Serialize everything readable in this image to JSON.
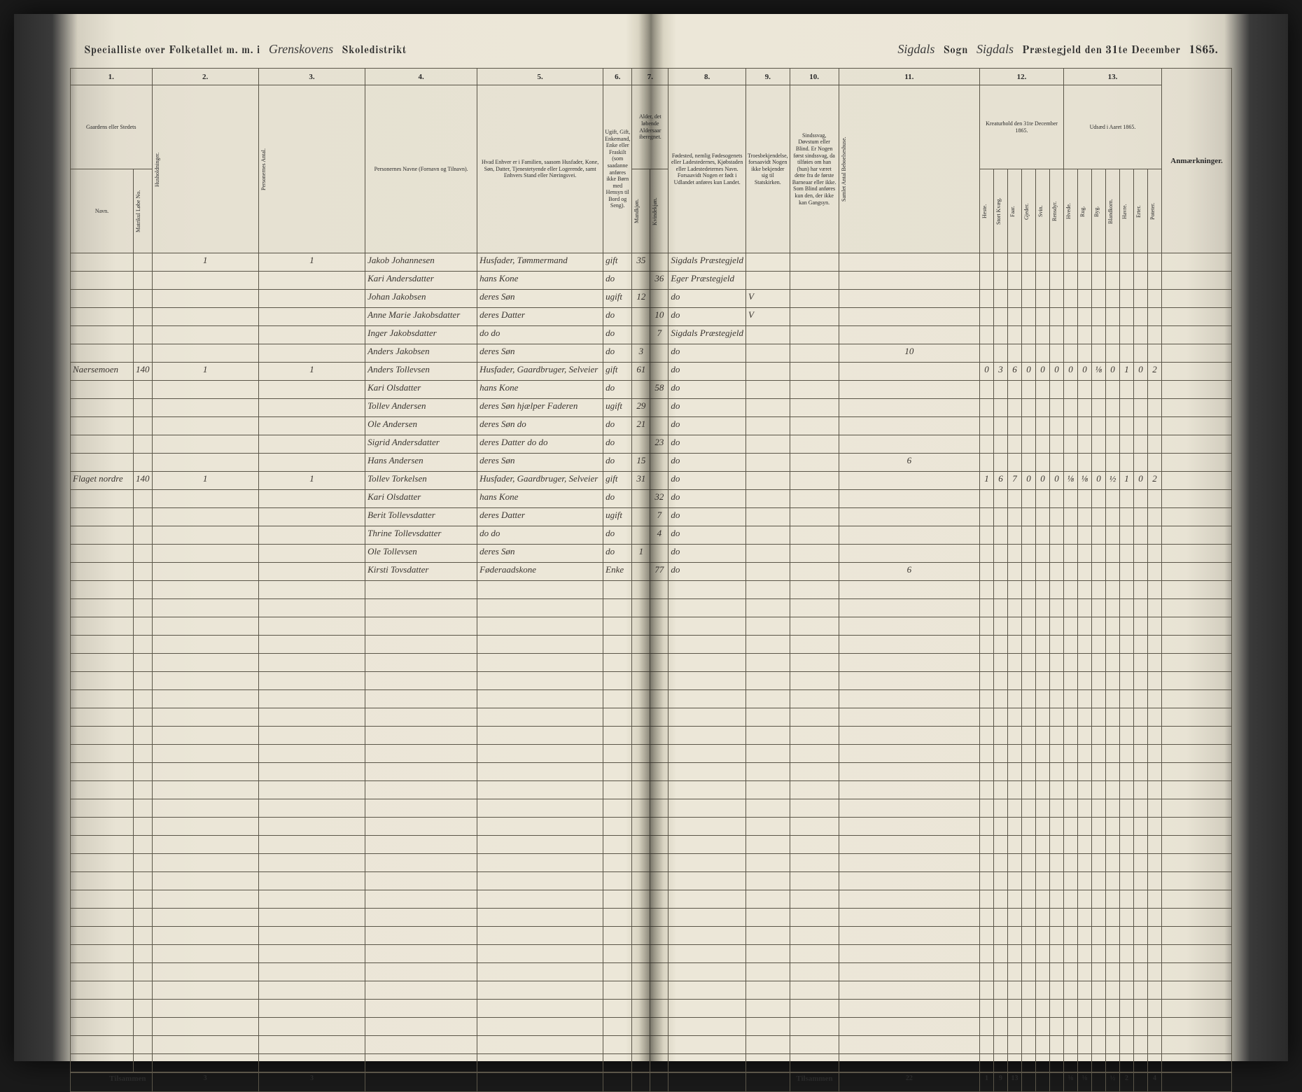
{
  "header": {
    "title_prefix": "Specialliste over Folketallet m. m. i",
    "district": "Grenskovens",
    "district_label": "Skoledistrikt",
    "parish": "Sigdals",
    "parish_label": "Sogn",
    "prestegjeld": "Sigdals",
    "prestegjeld_label": "Præstegjeld den 31te December",
    "year": "1865."
  },
  "columns": {
    "c1": "1.",
    "c2": "2.",
    "c3": "3.",
    "c4": "4.",
    "c5": "5.",
    "c6": "6.",
    "c7": "7.",
    "c8": "8.",
    "c9": "9.",
    "c10": "10.",
    "c11": "11.",
    "c12": "12.",
    "c13": "13.",
    "h1": "Gaardens eller Stedets",
    "h1a": "Navn.",
    "h1b": "Matrikul Løbe No.",
    "h2": "Husholdninger.",
    "h3": "Personernes Antal.",
    "h4": "Personernes Navne (Fornavn og Tilnavn).",
    "h5": "Hvad Enhver er i Familien, saasom Husfader, Kone, Søn, Datter, Tjenestetyende eller Logerende, samt Enhvers Stand eller Næringsvei.",
    "h6": "Ugift, Gift, Enkemand, Enke eller Fraskilt (som saadanne anføres ikke Børn med Hensyn til Bord og Seng).",
    "h7": "Alder, det løbende Aldersaar iberegnet.",
    "h7a": "Mandkjøn.",
    "h7b": "Kvindekjøn.",
    "h8": "Fødested, nemlig Fødesogenets eller Ladestedernes, Kjøbstaden eller Ladestedeternes Navn. Forsaavidt Nogen er født i Udlandet anføres kun Landet.",
    "h9": "Troesbekjendelse, forsaavidt Nogen ikke bekjender sig til Statskirken.",
    "h10": "Sindssvag, Døvstum eller Blind. Er Nogen først sindssvag, da tilføies om han (hun) har været dette fra de første Barneaar eller ikke. Som Blind anføres kun den, der ikke kan Gangsyn.",
    "h11": "Samlet Antal Beboelseshuse.",
    "h12": "Kreaturhold den 31te December 1865.",
    "h12a": "Heste.",
    "h12b": "Stort Kvæg.",
    "h12c": "Faar.",
    "h12d": "Gjeder.",
    "h12e": "Svin.",
    "h12f": "Rensdyr.",
    "h13": "Udsæd i Aaret 1865.",
    "h13a": "Hvede.",
    "h13b": "Rug.",
    "h13c": "Byg.",
    "h13d": "Blandkorn.",
    "h13e": "Havre.",
    "h13f": "Erter.",
    "h13g": "Poteter.",
    "h14": "Anmærkninger."
  },
  "rows": [
    {
      "farm": "",
      "matr": "",
      "h": "1",
      "p": "1",
      "name": "Jakob Johannesen",
      "pos": "Husfader, Tømmermand",
      "mar": "gift",
      "am": "35",
      "af": "",
      "birth": "Sigdals Præstegjeld",
      "rel": "",
      "dis": "",
      "house": "",
      "l1": "",
      "l2": "",
      "l3": "",
      "l4": "",
      "l5": "",
      "l6": "",
      "u1": "",
      "u2": "",
      "u3": "",
      "u4": "",
      "u5": "",
      "u6": "",
      "u7": "",
      "rem": ""
    },
    {
      "farm": "",
      "matr": "",
      "h": "",
      "p": "",
      "name": "Kari Andersdatter",
      "pos": "hans Kone",
      "mar": "do",
      "am": "",
      "af": "36",
      "birth": "Eger Præstegjeld",
      "rel": "",
      "dis": "",
      "house": "",
      "l1": "",
      "l2": "",
      "l3": "",
      "l4": "",
      "l5": "",
      "l6": "",
      "u1": "",
      "u2": "",
      "u3": "",
      "u4": "",
      "u5": "",
      "u6": "",
      "u7": "",
      "rem": ""
    },
    {
      "farm": "",
      "matr": "",
      "h": "",
      "p": "",
      "name": "Johan Jakobsen",
      "pos": "deres Søn",
      "mar": "ugift",
      "am": "12",
      "af": "",
      "birth": "do",
      "rel": "V",
      "dis": "",
      "house": "",
      "l1": "",
      "l2": "",
      "l3": "",
      "l4": "",
      "l5": "",
      "l6": "",
      "u1": "",
      "u2": "",
      "u3": "",
      "u4": "",
      "u5": "",
      "u6": "",
      "u7": "",
      "rem": ""
    },
    {
      "farm": "",
      "matr": "",
      "h": "",
      "p": "",
      "name": "Anne Marie Jakobsdatter",
      "pos": "deres Datter",
      "mar": "do",
      "am": "",
      "af": "10",
      "birth": "do",
      "rel": "V",
      "dis": "",
      "house": "",
      "l1": "",
      "l2": "",
      "l3": "",
      "l4": "",
      "l5": "",
      "l6": "",
      "u1": "",
      "u2": "",
      "u3": "",
      "u4": "",
      "u5": "",
      "u6": "",
      "u7": "",
      "rem": ""
    },
    {
      "farm": "",
      "matr": "",
      "h": "",
      "p": "",
      "name": "Inger Jakobsdatter",
      "pos": "do   do",
      "mar": "do",
      "am": "",
      "af": "7",
      "birth": "Sigdals Præstegjeld",
      "rel": "",
      "dis": "",
      "house": "",
      "l1": "",
      "l2": "",
      "l3": "",
      "l4": "",
      "l5": "",
      "l6": "",
      "u1": "",
      "u2": "",
      "u3": "",
      "u4": "",
      "u5": "",
      "u6": "",
      "u7": "",
      "rem": ""
    },
    {
      "farm": "",
      "matr": "",
      "h": "",
      "p": "",
      "name": "Anders Jakobsen",
      "pos": "deres Søn",
      "mar": "do",
      "am": "3",
      "af": "",
      "birth": "do",
      "rel": "",
      "dis": "",
      "house": "10",
      "l1": "",
      "l2": "",
      "l3": "",
      "l4": "",
      "l5": "",
      "l6": "",
      "u1": "",
      "u2": "",
      "u3": "",
      "u4": "",
      "u5": "",
      "u6": "",
      "u7": "",
      "rem": ""
    },
    {
      "farm": "Naersemoen",
      "matr": "140",
      "h": "1",
      "p": "1",
      "name": "Anders Tollevsen",
      "pos": "Husfader, Gaardbruger, Selveier",
      "mar": "gift",
      "am": "61",
      "af": "",
      "birth": "do",
      "rel": "",
      "dis": "",
      "house": "",
      "l1": "0",
      "l2": "3",
      "l3": "6",
      "l4": "0",
      "l5": "0",
      "l6": "0",
      "u1": "0",
      "u2": "0",
      "u3": "⅛",
      "u4": "0",
      "u5": "1",
      "u6": "0",
      "u7": "2",
      "rem": ""
    },
    {
      "farm": "",
      "matr": "",
      "h": "",
      "p": "",
      "name": "Kari Olsdatter",
      "pos": "hans Kone",
      "mar": "do",
      "am": "",
      "af": "58",
      "birth": "do",
      "rel": "",
      "dis": "",
      "house": "",
      "l1": "",
      "l2": "",
      "l3": "",
      "l4": "",
      "l5": "",
      "l6": "",
      "u1": "",
      "u2": "",
      "u3": "",
      "u4": "",
      "u5": "",
      "u6": "",
      "u7": "",
      "rem": ""
    },
    {
      "farm": "",
      "matr": "",
      "h": "",
      "p": "",
      "name": "Tollev Andersen",
      "pos": "deres Søn hjælper Faderen",
      "mar": "ugift",
      "am": "29",
      "af": "",
      "birth": "do",
      "rel": "",
      "dis": "",
      "house": "",
      "l1": "",
      "l2": "",
      "l3": "",
      "l4": "",
      "l5": "",
      "l6": "",
      "u1": "",
      "u2": "",
      "u3": "",
      "u4": "",
      "u5": "",
      "u6": "",
      "u7": "",
      "rem": ""
    },
    {
      "farm": "",
      "matr": "",
      "h": "",
      "p": "",
      "name": "Ole Andersen",
      "pos": "deres Søn  do",
      "mar": "do",
      "am": "21",
      "af": "",
      "birth": "do",
      "rel": "",
      "dis": "",
      "house": "",
      "l1": "",
      "l2": "",
      "l3": "",
      "l4": "",
      "l5": "",
      "l6": "",
      "u1": "",
      "u2": "",
      "u3": "",
      "u4": "",
      "u5": "",
      "u6": "",
      "u7": "",
      "rem": ""
    },
    {
      "farm": "",
      "matr": "",
      "h": "",
      "p": "",
      "name": "Sigrid Andersdatter",
      "pos": "deres Datter do   do",
      "mar": "do",
      "am": "",
      "af": "23",
      "birth": "do",
      "rel": "",
      "dis": "",
      "house": "",
      "l1": "",
      "l2": "",
      "l3": "",
      "l4": "",
      "l5": "",
      "l6": "",
      "u1": "",
      "u2": "",
      "u3": "",
      "u4": "",
      "u5": "",
      "u6": "",
      "u7": "",
      "rem": ""
    },
    {
      "farm": "",
      "matr": "",
      "h": "",
      "p": "",
      "name": "Hans Andersen",
      "pos": "deres Søn",
      "mar": "do",
      "am": "15",
      "af": "",
      "birth": "do",
      "rel": "",
      "dis": "",
      "house": "6",
      "l1": "",
      "l2": "",
      "l3": "",
      "l4": "",
      "l5": "",
      "l6": "",
      "u1": "",
      "u2": "",
      "u3": "",
      "u4": "",
      "u5": "",
      "u6": "",
      "u7": "",
      "rem": ""
    },
    {
      "farm": "Flaget nordre",
      "matr": "140",
      "h": "1",
      "p": "1",
      "name": "Tollev Torkelsen",
      "pos": "Husfader, Gaardbruger, Selveier",
      "mar": "gift",
      "am": "31",
      "af": "",
      "birth": "do",
      "rel": "",
      "dis": "",
      "house": "",
      "l1": "1",
      "l2": "6",
      "l3": "7",
      "l4": "0",
      "l5": "0",
      "l6": "0",
      "u1": "⅛",
      "u2": "⅛",
      "u3": "0",
      "u4": "½",
      "u5": "1",
      "u6": "0",
      "u7": "2",
      "rem": ""
    },
    {
      "farm": "",
      "matr": "",
      "h": "",
      "p": "",
      "name": "Kari Olsdatter",
      "pos": "hans Kone",
      "mar": "do",
      "am": "",
      "af": "32",
      "birth": "do",
      "rel": "",
      "dis": "",
      "house": "",
      "l1": "",
      "l2": "",
      "l3": "",
      "l4": "",
      "l5": "",
      "l6": "",
      "u1": "",
      "u2": "",
      "u3": "",
      "u4": "",
      "u5": "",
      "u6": "",
      "u7": "",
      "rem": ""
    },
    {
      "farm": "",
      "matr": "",
      "h": "",
      "p": "",
      "name": "Berit Tollevsdatter",
      "pos": "deres Datter",
      "mar": "ugift",
      "am": "",
      "af": "7",
      "birth": "do",
      "rel": "",
      "dis": "",
      "house": "",
      "l1": "",
      "l2": "",
      "l3": "",
      "l4": "",
      "l5": "",
      "l6": "",
      "u1": "",
      "u2": "",
      "u3": "",
      "u4": "",
      "u5": "",
      "u6": "",
      "u7": "",
      "rem": ""
    },
    {
      "farm": "",
      "matr": "",
      "h": "",
      "p": "",
      "name": "Thrine Tollevsdatter",
      "pos": "do   do",
      "mar": "do",
      "am": "",
      "af": "4",
      "birth": "do",
      "rel": "",
      "dis": "",
      "house": "",
      "l1": "",
      "l2": "",
      "l3": "",
      "l4": "",
      "l5": "",
      "l6": "",
      "u1": "",
      "u2": "",
      "u3": "",
      "u4": "",
      "u5": "",
      "u6": "",
      "u7": "",
      "rem": ""
    },
    {
      "farm": "",
      "matr": "",
      "h": "",
      "p": "",
      "name": "Ole Tollevsen",
      "pos": "deres Søn",
      "mar": "do",
      "am": "1",
      "af": "",
      "birth": "do",
      "rel": "",
      "dis": "",
      "house": "",
      "l1": "",
      "l2": "",
      "l3": "",
      "l4": "",
      "l5": "",
      "l6": "",
      "u1": "",
      "u2": "",
      "u3": "",
      "u4": "",
      "u5": "",
      "u6": "",
      "u7": "",
      "rem": ""
    },
    {
      "farm": "",
      "matr": "",
      "h": "",
      "p": "",
      "name": "Kirsti Tovsdatter",
      "pos": "Føderaadskone",
      "mar": "Enke",
      "am": "",
      "af": "77",
      "birth": "do",
      "rel": "",
      "dis": "",
      "house": "6",
      "l1": "",
      "l2": "",
      "l3": "",
      "l4": "",
      "l5": "",
      "l6": "",
      "u1": "",
      "u2": "",
      "u3": "",
      "u4": "",
      "u5": "",
      "u6": "",
      "u7": "",
      "rem": ""
    }
  ],
  "empty_rows": 27,
  "footer": {
    "label_left": "Tilsammen",
    "sum_h": "3",
    "sum_p": "3",
    "label_right": "Tilsammen",
    "t_house": "22",
    "t_l1": "1",
    "t_l2": "9",
    "t_l3": "13",
    "t_l4": "",
    "t_l5": "",
    "t_l6": "",
    "t_u1": "⅛",
    "t_u2": "⅛",
    "t_u3": "",
    "t_u4": "½",
    "t_u5": "2",
    "t_u6": "",
    "t_u7": "4"
  }
}
